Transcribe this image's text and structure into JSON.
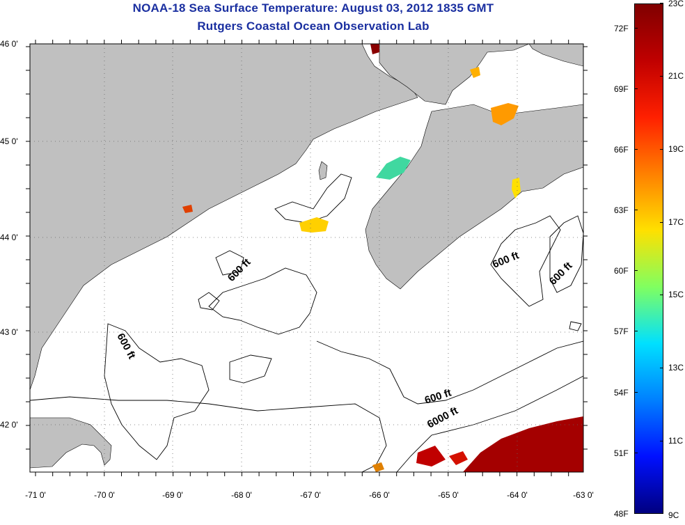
{
  "header": {
    "title": "NOAA-18 Sea Surface Temperature:  August 03, 2012 1835 GMT",
    "subtitle": "Rutgers Coastal Ocean Observation Lab"
  },
  "map": {
    "lat_labels": [
      "46 0'",
      "45 0'",
      "44 0'",
      "43 0'",
      "42 0'"
    ],
    "lon_labels": [
      "-71 0'",
      "-70 0'",
      "-69 0'",
      "-68 0'",
      "-67 0'",
      "-66 0'",
      "-65 0'",
      "-64 0'",
      "-63 0'"
    ],
    "contour_labels": [
      "600 ft",
      "600 ft",
      "600 ft",
      "600 ft",
      "600 ft",
      "6000 ft"
    ],
    "land_color": "#c0c0c0",
    "water_color": "#ffffff"
  },
  "colorbar": {
    "fahrenheit_labels": [
      "72F",
      "69F",
      "66F",
      "63F",
      "60F",
      "57F",
      "54F",
      "51F",
      "48F"
    ],
    "celsius_labels": [
      "23C",
      "21C",
      "19C",
      "17C",
      "15C",
      "13C",
      "11C",
      "9C"
    ],
    "gradient_colors": [
      "#800000",
      "#c00000",
      "#ff2000",
      "#ff8000",
      "#ffe000",
      "#80ff60",
      "#00e0ff",
      "#0080ff",
      "#0010ff",
      "#000080"
    ]
  }
}
